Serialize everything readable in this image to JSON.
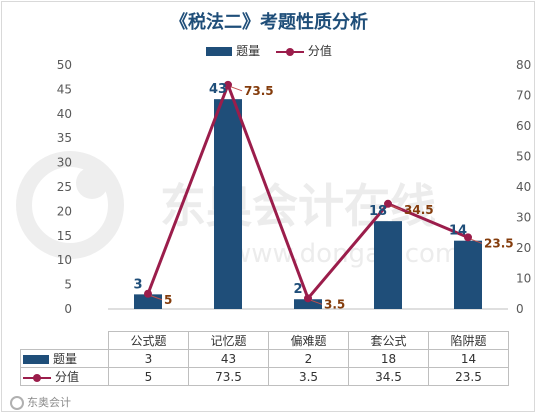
{
  "chart_data": {
    "type": "bar",
    "title": "《税法二》考题性质分析",
    "categories": [
      "公式题",
      "记忆题",
      "偏难题",
      "套公式",
      "陷阱题"
    ],
    "series": [
      {
        "name": "题量",
        "type": "bar",
        "axis": "left",
        "values": [
          3,
          43,
          2,
          18,
          14
        ],
        "color": "#1f4e79"
      },
      {
        "name": "分值",
        "type": "line",
        "axis": "right",
        "values": [
          5,
          73.5,
          3.5,
          34.5,
          23.5
        ],
        "color": "#9b1d4b"
      }
    ],
    "left_axis": {
      "min": 0,
      "max": 50,
      "step": 5,
      "ticks": [
        "0",
        "5",
        "10",
        "15",
        "20",
        "25",
        "30",
        "35",
        "40",
        "45",
        "50"
      ]
    },
    "right_axis": {
      "min": 0,
      "max": 80,
      "step": 10,
      "ticks": [
        "0",
        "10",
        "20",
        "30",
        "40",
        "50",
        "60",
        "70",
        "80"
      ]
    },
    "bar_labels": [
      "3",
      "43",
      "2",
      "18",
      "14"
    ],
    "line_labels": [
      "5",
      "73.5",
      "3.5",
      "34.5",
      "23.5"
    ],
    "legend_position": "top",
    "grid": false,
    "data_table": true
  },
  "watermark": {
    "brand": "东奥会计在线",
    "url": "www.dongao.com"
  },
  "footer": {
    "text": "东奥会计"
  }
}
